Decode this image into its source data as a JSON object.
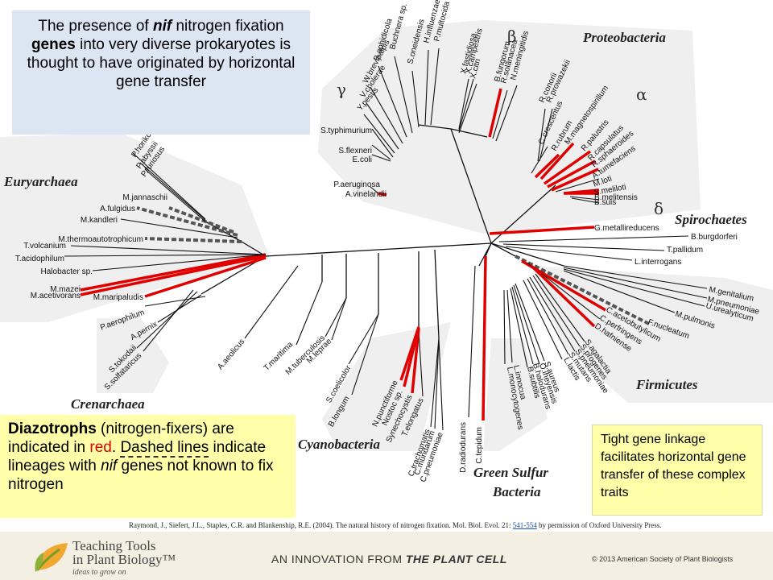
{
  "intro": {
    "part1": "The presence of ",
    "nif": "nif",
    "part2": " nitrogen fixation ",
    "genes": "genes",
    "part3": " into very diverse prokaryotes is thought to have originated by horizontal gene transfer"
  },
  "legend": {
    "diazotrophs": "Diazotrophs",
    "p1": " (nitrogen-fixers) are indicated in ",
    "red_word": "red",
    "p2": ". ",
    "dashed": "Dashed lines",
    "p3": " indicate lineages with ",
    "nif": "nif",
    "p4": " genes not known to fix nitrogen"
  },
  "linkage_note": "Tight gene linkage facilitates horizontal gene transfer of these complex traits",
  "citation": {
    "text": "Raymond, J., Siefert, J.L., Staples, C.R. and Blankenship, R.E. (2004). The natural history of nitrogen fixation. Mol. Biol. Evol. 21: ",
    "pages": "541-554",
    "suffix": " by permission of Oxford University Press."
  },
  "footer": {
    "brand_line1": "Teaching Tools",
    "brand_line2": "in Plant Biology™",
    "tagline": "ideas to grow on",
    "innovation_prefix": "AN INNOVATION FROM ",
    "innovation_journal": "THE PLANT CELL",
    "copyright": "© 2013 American Society of Plant Biologists"
  },
  "colors": {
    "diazotroph": "#e00000",
    "dashed_lineage": "#555555",
    "branch": "#111111",
    "region_fill": "#efefef"
  },
  "groups": [
    "Proteobacteria",
    "Euryarchaea",
    "Spirochaetes",
    "Firmicutes",
    "Crenarchaea",
    "Cyanobacteria",
    "Green Sulfur",
    "Bacteria"
  ],
  "greek": [
    "β",
    "γ",
    "α",
    "δ"
  ],
  "taxa": [
    {
      "name": "P.multocida",
      "style": "black"
    },
    {
      "name": "H.influenzae",
      "style": "black"
    },
    {
      "name": "S.oneidensis",
      "style": "black"
    },
    {
      "name": "Buchnera sp.",
      "style": "black"
    },
    {
      "name": "B.aphidicola",
      "style": "black"
    },
    {
      "name": "W.brevipalpis",
      "style": "black"
    },
    {
      "name": "V.cholerae",
      "style": "black"
    },
    {
      "name": "Y.pestis",
      "style": "black"
    },
    {
      "name": "S.typhimurium",
      "style": "black"
    },
    {
      "name": "S.flexneri",
      "style": "black"
    },
    {
      "name": "E.coli",
      "style": "black"
    },
    {
      "name": "X.fastidiosa",
      "style": "black"
    },
    {
      "name": "X.campestris",
      "style": "black"
    },
    {
      "name": "X.citri",
      "style": "black"
    },
    {
      "name": "B.fungorum",
      "style": "red"
    },
    {
      "name": "R.solanacea",
      "style": "black"
    },
    {
      "name": "N.meningitidis",
      "style": "black"
    },
    {
      "name": "R.conorii",
      "style": "black"
    },
    {
      "name": "R.prowazekii",
      "style": "black"
    },
    {
      "name": "C.crescentus",
      "style": "black"
    },
    {
      "name": "R.rubrum",
      "style": "red"
    },
    {
      "name": "M.magnetospirillum",
      "style": "red"
    },
    {
      "name": "R.palustris",
      "style": "red"
    },
    {
      "name": "R.capsulatus",
      "style": "red"
    },
    {
      "name": "R.sphaeroides",
      "style": "red"
    },
    {
      "name": "A.tumefaciens",
      "style": "black"
    },
    {
      "name": "M.loti",
      "style": "red"
    },
    {
      "name": "S.meliloti",
      "style": "red"
    },
    {
      "name": "B.melitensis",
      "style": "black"
    },
    {
      "name": "B.suis",
      "style": "black"
    },
    {
      "name": "P.aeruginosa",
      "style": "black"
    },
    {
      "name": "A.vinelandii",
      "style": "red"
    },
    {
      "name": "G.metallireducens",
      "style": "red"
    },
    {
      "name": "B.burgdorferi",
      "style": "black"
    },
    {
      "name": "T.pallidum",
      "style": "black"
    },
    {
      "name": "L.interrogans",
      "style": "black"
    },
    {
      "name": "M.genitalium",
      "style": "black"
    },
    {
      "name": "M.pneumoniae",
      "style": "black"
    },
    {
      "name": "U.urealyticum",
      "style": "black"
    },
    {
      "name": "M.pulmonis",
      "style": "black"
    },
    {
      "name": "F.nucleatum",
      "style": "dashed"
    },
    {
      "name": "C.acetobutylicum",
      "style": "red"
    },
    {
      "name": "C.perfringens",
      "style": "black"
    },
    {
      "name": "D.hafniense",
      "style": "red"
    },
    {
      "name": "S.agalactia",
      "style": "black"
    },
    {
      "name": "S.progenes",
      "style": "black"
    },
    {
      "name": "S.pneumoniae",
      "style": "black"
    },
    {
      "name": "S.mutans",
      "style": "black"
    },
    {
      "name": "L.lactis",
      "style": "black"
    },
    {
      "name": "S.aureus",
      "style": "black"
    },
    {
      "name": "O.iheyensis",
      "style": "black"
    },
    {
      "name": "B.halodurans",
      "style": "black"
    },
    {
      "name": "B.subtilis",
      "style": "black"
    },
    {
      "name": "L.innocua",
      "style": "black"
    },
    {
      "name": "L.monocytogenes",
      "style": "black"
    },
    {
      "name": "C.tepidum",
      "style": "red"
    },
    {
      "name": "D.radiodurans",
      "style": "black"
    },
    {
      "name": "C.trachomatis",
      "style": "black"
    },
    {
      "name": "C.muridarum",
      "style": "black"
    },
    {
      "name": "C.pneumoniae",
      "style": "black"
    },
    {
      "name": "T.elongatus",
      "style": "black"
    },
    {
      "name": "Synechocystis",
      "style": "red"
    },
    {
      "name": "Nostoc sp.",
      "style": "red"
    },
    {
      "name": "N.punctiforme",
      "style": "red"
    },
    {
      "name": "B.longum",
      "style": "black"
    },
    {
      "name": "S.coelicolor",
      "style": "black"
    },
    {
      "name": "M.leprae",
      "style": "black"
    },
    {
      "name": "M.tuberculosis",
      "style": "black"
    },
    {
      "name": "T.maritima",
      "style": "black"
    },
    {
      "name": "A.aeolicus",
      "style": "black"
    },
    {
      "name": "S.solfataricus",
      "style": "black"
    },
    {
      "name": "S.tokodaii",
      "style": "black"
    },
    {
      "name": "A.pernix",
      "style": "black"
    },
    {
      "name": "P.aerophilum",
      "style": "black"
    },
    {
      "name": "M.maripaludis",
      "style": "red"
    },
    {
      "name": "M.acetivorans",
      "style": "red"
    },
    {
      "name": "M.mazei",
      "style": "red"
    },
    {
      "name": "Halobacter sp.",
      "style": "black"
    },
    {
      "name": "T.acidophilum",
      "style": "black"
    },
    {
      "name": "T.volcanium",
      "style": "black"
    },
    {
      "name": "M.thermoautotrophicum",
      "style": "dashed"
    },
    {
      "name": "M.kandleri",
      "style": "black"
    },
    {
      "name": "A.fulgidus",
      "style": "dashed"
    },
    {
      "name": "M.jannaschii",
      "style": "dashed"
    },
    {
      "name": "P.furiosus",
      "style": "black"
    },
    {
      "name": "P.abyssii",
      "style": "black"
    },
    {
      "name": "P.horikoshii",
      "style": "black"
    }
  ]
}
